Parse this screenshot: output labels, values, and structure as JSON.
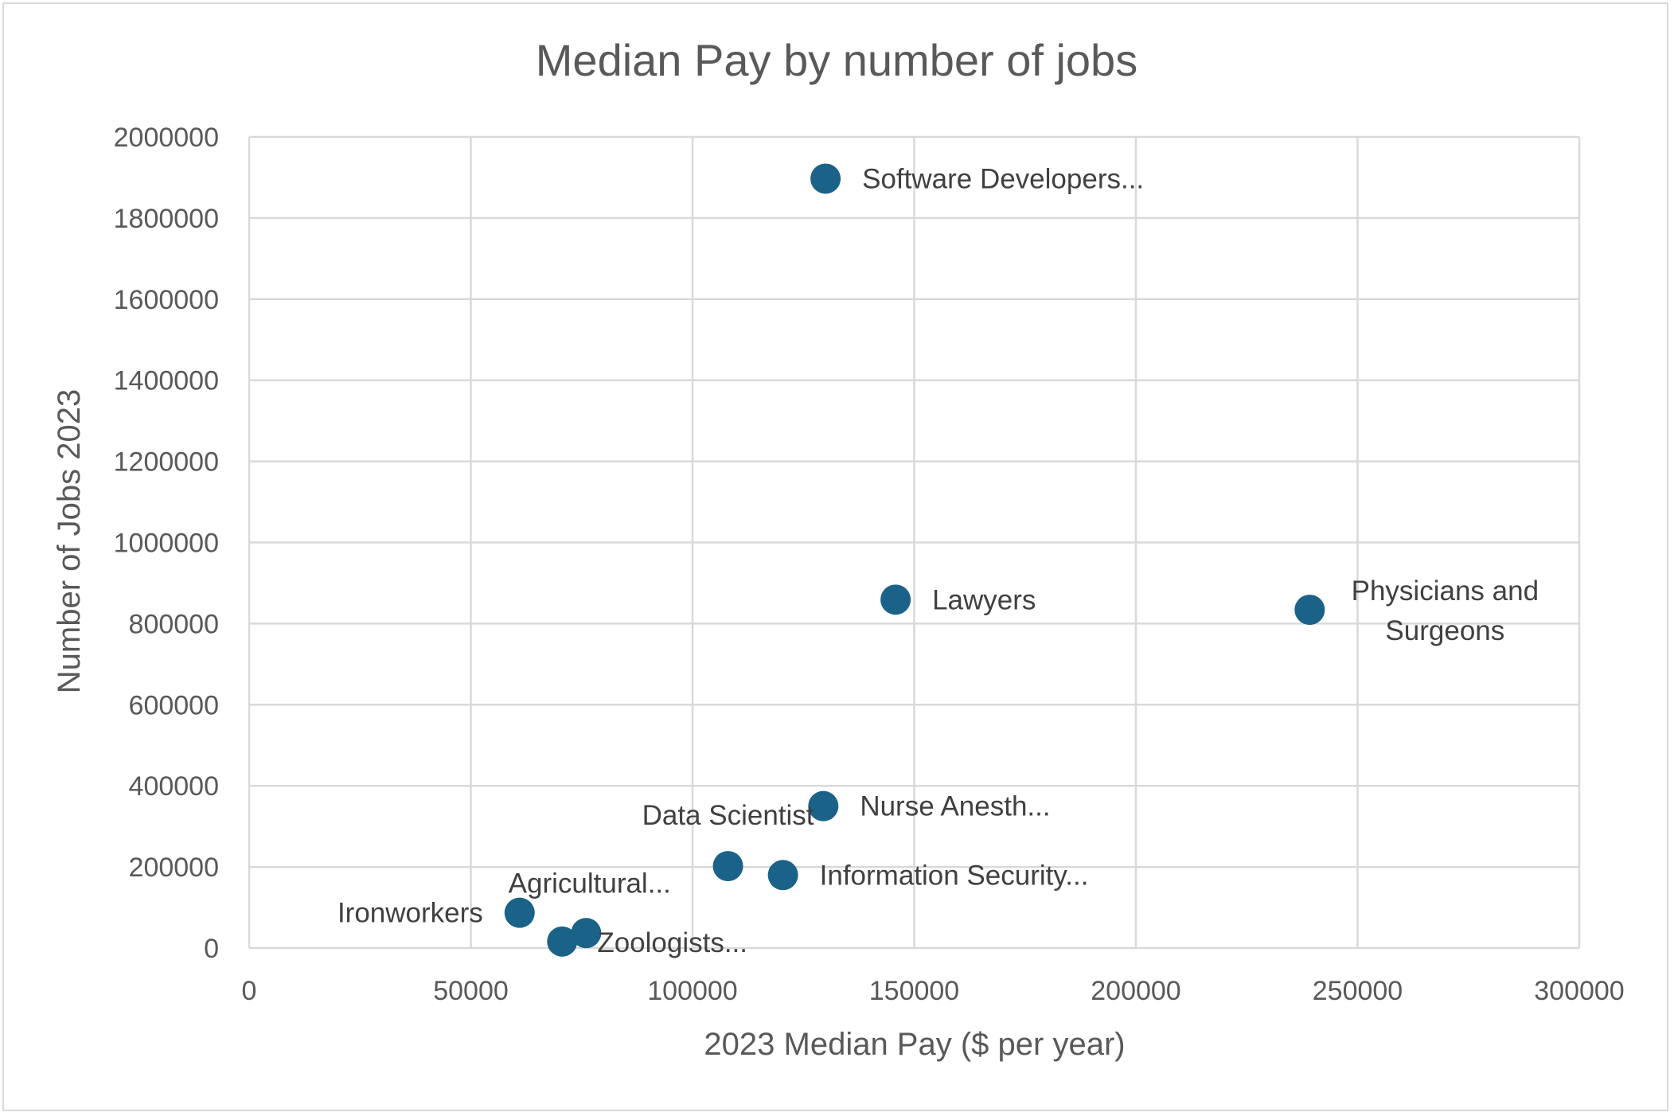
{
  "chart_data": {
    "type": "scatter",
    "title": "Median Pay by number of jobs",
    "xlabel": "2023 Median Pay ($ per year)",
    "ylabel": "Number of Jobs 2023",
    "xlim": [
      0,
      300000
    ],
    "ylim": [
      0,
      2000000
    ],
    "x_ticks": [
      "0",
      "50000",
      "100000",
      "150000",
      "200000",
      "250000",
      "300000"
    ],
    "y_ticks": [
      "0",
      "200000",
      "400000",
      "600000",
      "800000",
      "1000000",
      "1200000",
      "1400000",
      "1600000",
      "1800000",
      "2000000"
    ],
    "grid": true,
    "legend": "none",
    "marker_color": "#1b6289",
    "points": [
      {
        "label": "Software Developers...",
        "x": 130000,
        "y": 1897000
      },
      {
        "label": "Lawyers",
        "x": 145800,
        "y": 859000
      },
      {
        "label": "Physicians and Surgeons",
        "x": 239200,
        "y": 834000
      },
      {
        "label": "Nurse Anesth...",
        "x": 129500,
        "y": 350000
      },
      {
        "label": "Data Scientist",
        "x": 108000,
        "y": 202000
      },
      {
        "label": "Information Security...",
        "x": 120400,
        "y": 180000
      },
      {
        "label": "Agricultural...",
        "x": 61000,
        "y": 87000
      },
      {
        "label": "Ironworkers",
        "x": 61000,
        "y": 87000
      },
      {
        "label": "Zoologists...",
        "x": 76000,
        "y": 37000
      },
      {
        "label": "",
        "x": 70600,
        "y": 16000
      }
    ]
  }
}
